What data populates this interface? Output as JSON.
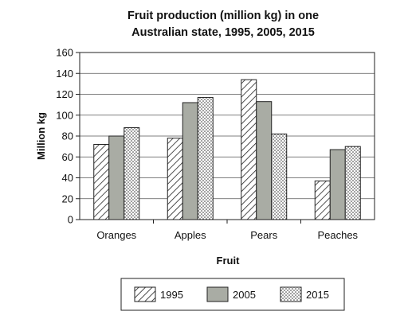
{
  "chart_data": {
    "type": "bar",
    "title_line1": "Fruit production (million kg) in one",
    "title_line2": "Australian state, 1995, 2005, 2015",
    "xlabel": "Fruit",
    "ylabel": "Million kg",
    "categories": [
      "Oranges",
      "Apples",
      "Pears",
      "Peaches"
    ],
    "series": [
      {
        "name": "1995",
        "values": [
          72,
          78,
          134,
          37
        ],
        "pattern": "hatch"
      },
      {
        "name": "2005",
        "values": [
          80,
          112,
          113,
          67
        ],
        "pattern": "solid",
        "color": "#a9aca4"
      },
      {
        "name": "2015",
        "values": [
          88,
          117,
          82,
          70
        ],
        "pattern": "dots"
      }
    ],
    "ylim": [
      0,
      160
    ],
    "yticks": [
      "0",
      "20",
      "40",
      "60",
      "80",
      "100",
      "120",
      "140",
      "160"
    ],
    "grid": true,
    "legend_position": "bottom"
  }
}
